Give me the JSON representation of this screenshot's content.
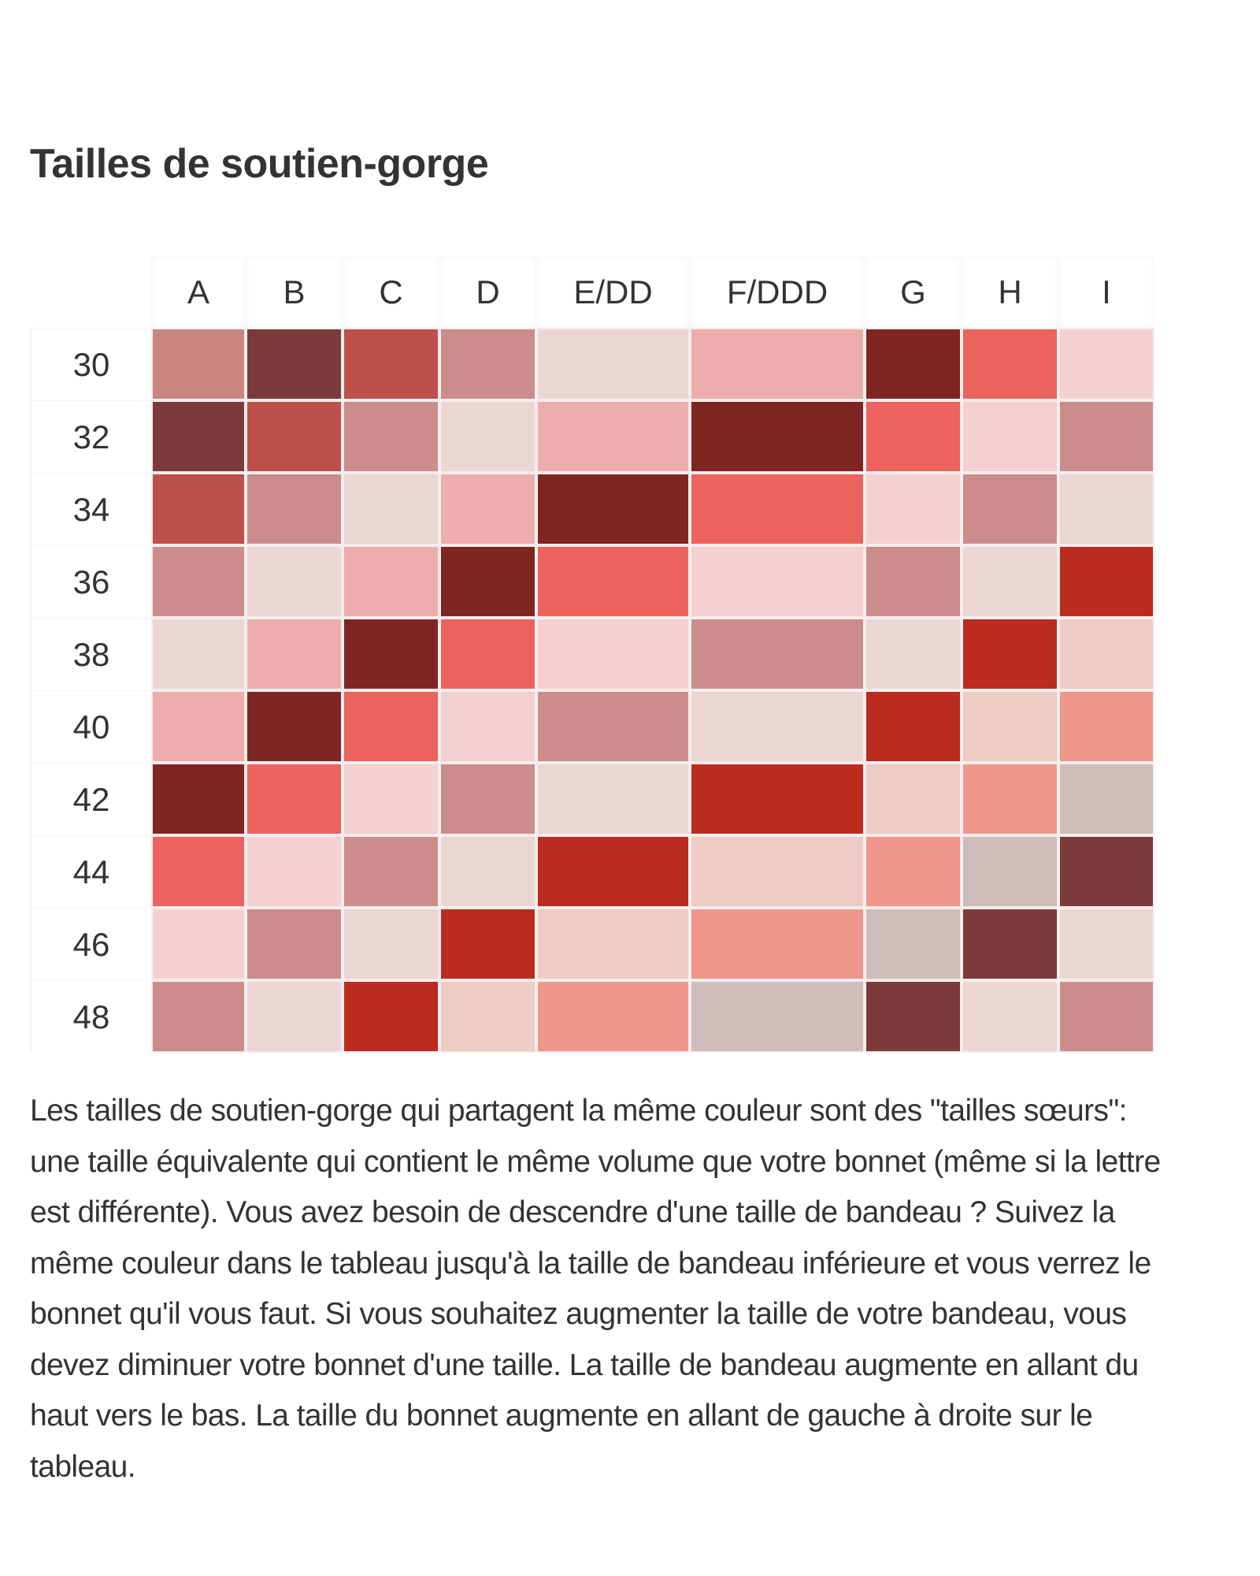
{
  "title": "Tailles de soutien-gorge",
  "chart_data": {
    "type": "heatmap",
    "title": "Tailles de soutien-gorge",
    "columns": [
      "A",
      "B",
      "C",
      "D",
      "E/DD",
      "F/DDD",
      "G",
      "H",
      "I"
    ],
    "rows": [
      "30",
      "32",
      "34",
      "36",
      "38",
      "40",
      "42",
      "44",
      "46",
      "48"
    ],
    "cell_colors": [
      [
        "#c98680",
        "#7d3a3a",
        "#bf4f4a",
        "#cc8c8c",
        "#ecd6d4",
        "#eeadad",
        "#7f2622",
        "#eb635c",
        "#f5d0d0"
      ],
      [
        "#7d3a3a",
        "#bf4f4a",
        "#cc8c8c",
        "#ecd6d4",
        "#eeadad",
        "#7f2622",
        "#eb635c",
        "#f5d0d0",
        "#cc8c8c"
      ],
      [
        "#bf4f4a",
        "#cc8c8c",
        "#ecd6d4",
        "#eeadad",
        "#7f2622",
        "#eb635c",
        "#f5d0d0",
        "#cc8c8c",
        "#ecd6d4"
      ],
      [
        "#cc8c8c",
        "#ecd6d4",
        "#eeadad",
        "#7f2622",
        "#eb635c",
        "#f5d0d0",
        "#cc8c8c",
        "#ecd6d4",
        "#bb2b1e"
      ],
      [
        "#ecd6d4",
        "#eeadad",
        "#7f2622",
        "#eb635c",
        "#f5d0d0",
        "#cc8c8c",
        "#ecd6d4",
        "#bb2b1e",
        "#ecccc4"
      ],
      [
        "#eeadad",
        "#7f2622",
        "#eb635c",
        "#f5d0d0",
        "#cc8c8c",
        "#ecd6d4",
        "#bb2b1e",
        "#ecccc4",
        "#f0968a"
      ],
      [
        "#7f2622",
        "#eb635c",
        "#f5d0d0",
        "#cc8c8c",
        "#ecd6d4",
        "#bb2b1e",
        "#ecccc4",
        "#f0968a",
        "#cfbdbb"
      ],
      [
        "#eb635c",
        "#f5d0d0",
        "#cc8c8c",
        "#ecd6d4",
        "#bb2b1e",
        "#ecccc4",
        "#f0968a",
        "#cfbdbb",
        "#7d3a3a"
      ],
      [
        "#f5d0d0",
        "#cc8c8c",
        "#ecd6d4",
        "#bb2b1e",
        "#ecccc4",
        "#f0968a",
        "#cfbdbb",
        "#7d3a3a",
        "#ecd6d4"
      ],
      [
        "#cc8c8c",
        "#ecd6d4",
        "#bb2b1e",
        "#ecccc4",
        "#f0968a",
        "#cfbdbb",
        "#7d3a3a",
        "#ecd6d4",
        "#cc8c8c"
      ]
    ]
  },
  "description": "Les tailles de soutien-gorge qui partagent la même couleur sont des \"tailles sœurs\": une taille équivalente qui contient le même volume que votre bonnet (même si la lettre est différente). Vous avez besoin de descendre d'une taille de bandeau ? Suivez la même couleur dans le tableau jusqu'à la taille de bandeau inférieure et vous verrez le bonnet qu'il vous faut. Si vous souhaitez augmenter la taille de votre bandeau, vous devez diminuer votre bonnet d'une taille. La taille de bandeau augmente en allant du haut vers le bas. La taille du bonnet augmente en allant de gauche à droite sur le tableau."
}
